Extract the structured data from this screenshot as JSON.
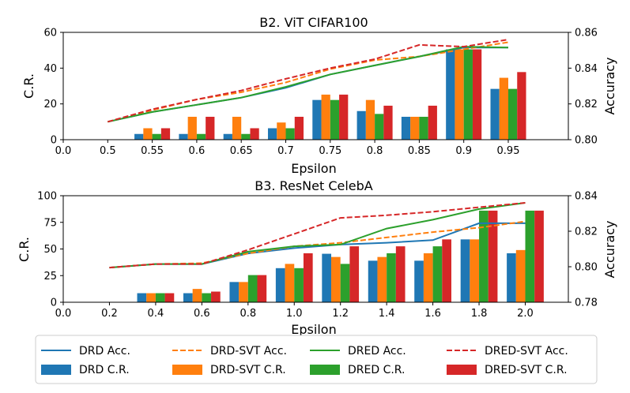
{
  "chart_data": [
    {
      "type": "bar+line",
      "title": "B2. ViT CIFAR100",
      "xlabel": "Epsilon",
      "ylabel_left": "C.R.",
      "ylabel_right": "Accuracy",
      "x_ticks": [
        "0.0",
        "0.5",
        "0.55",
        "0.6",
        "0.65",
        "0.7",
        "0.75",
        "0.8",
        "0.85",
        "0.9",
        "0.95"
      ],
      "left_ylim": [
        0,
        60
      ],
      "left_yticks": [
        "0",
        "20",
        "40",
        "60"
      ],
      "right_ylim": [
        0.8,
        0.86
      ],
      "right_yticks": [
        "0.80",
        "0.82",
        "0.84",
        "0.86"
      ],
      "line_start_index": 1,
      "bar_start_index": 2,
      "bar_series": [
        {
          "name": "DRD C.R.",
          "color": "#1f77b4",
          "values": [
            3.2,
            3.2,
            3.2,
            6.4,
            22.2,
            16.0,
            12.8,
            50.5,
            28.4
          ]
        },
        {
          "name": "DRD-SVT C.R.",
          "color": "#ff7f0e",
          "values": [
            6.4,
            12.8,
            12.8,
            9.6,
            25.2,
            22.2,
            12.8,
            50.5,
            34.6
          ]
        },
        {
          "name": "DRED C.R.",
          "color": "#2ca02c",
          "values": [
            3.2,
            3.2,
            3.2,
            6.4,
            22.2,
            14.4,
            12.8,
            50.5,
            28.4
          ]
        },
        {
          "name": "DRED-SVT C.R.",
          "color": "#d62728",
          "values": [
            6.4,
            12.8,
            6.4,
            12.8,
            25.2,
            19.0,
            19.0,
            50.5,
            37.8
          ]
        }
      ],
      "line_series": [
        {
          "name": "DRD Acc.",
          "color": "#1f77b4",
          "dash": false,
          "values": [
            0.81,
            0.8155,
            0.8195,
            0.8235,
            0.829,
            0.8365,
            0.8415,
            0.8465,
            0.8515,
            0.8515
          ]
        },
        {
          "name": "DRD-SVT Acc.",
          "color": "#ff7f0e",
          "dash": true,
          "values": [
            0.81,
            0.8165,
            0.8225,
            0.8265,
            0.832,
            0.8395,
            0.8445,
            0.8465,
            0.8505,
            0.8545
          ]
        },
        {
          "name": "DRED Acc.",
          "color": "#2ca02c",
          "dash": false,
          "values": [
            0.81,
            0.8155,
            0.8195,
            0.8235,
            0.8295,
            0.8365,
            0.8415,
            0.8465,
            0.852,
            0.8515
          ]
        },
        {
          "name": "DRED-SVT Acc.",
          "color": "#d62728",
          "dash": true,
          "values": [
            0.81,
            0.817,
            0.8225,
            0.8275,
            0.834,
            0.84,
            0.845,
            0.853,
            0.852,
            0.856
          ]
        }
      ]
    },
    {
      "type": "bar+line",
      "title": "B3. ResNet CelebA",
      "xlabel": "Epsilon",
      "ylabel_left": "C.R.",
      "ylabel_right": "Accuracy",
      "x_ticks": [
        "0.0",
        "0.2",
        "0.4",
        "0.6",
        "0.8",
        "1.0",
        "1.2",
        "1.4",
        "1.6",
        "1.8",
        "2.0"
      ],
      "left_ylim": [
        0,
        100
      ],
      "left_yticks": [
        "0",
        "25",
        "50",
        "75",
        "100"
      ],
      "right_ylim": [
        0.78,
        0.84
      ],
      "right_yticks": [
        "0.78",
        "0.80",
        "0.82",
        "0.84"
      ],
      "line_start_index": 1,
      "bar_start_index": 2,
      "bar_series": [
        {
          "name": "DRD C.R.",
          "color": "#1f77b4",
          "values": [
            8.5,
            8.5,
            19,
            32,
            45.5,
            39,
            39,
            59,
            46
          ]
        },
        {
          "name": "DRD-SVT C.R.",
          "color": "#ff7f0e",
          "values": [
            8.5,
            12.5,
            19,
            36,
            42.5,
            42.5,
            46,
            59,
            49
          ]
        },
        {
          "name": "DRED C.R.",
          "color": "#2ca02c",
          "values": [
            8.5,
            8.5,
            25.5,
            32,
            36,
            46,
            52.5,
            86,
            86
          ]
        },
        {
          "name": "DRED-SVT C.R.",
          "color": "#d62728",
          "values": [
            8.5,
            10,
            25.5,
            46,
            52.5,
            52.5,
            59,
            86,
            86
          ]
        }
      ],
      "line_series": [
        {
          "name": "DRD Acc.",
          "color": "#1f77b4",
          "dash": false,
          "values": [
            0.7995,
            0.8015,
            0.8015,
            0.8075,
            0.8105,
            0.8125,
            0.8135,
            0.815,
            0.8245,
            0.8245
          ]
        },
        {
          "name": "DRD-SVT Acc.",
          "color": "#ff7f0e",
          "dash": true,
          "values": [
            0.7995,
            0.8015,
            0.802,
            0.8075,
            0.8115,
            0.8135,
            0.8165,
            0.8195,
            0.822,
            0.8255
          ]
        },
        {
          "name": "DRED Acc.",
          "color": "#2ca02c",
          "dash": false,
          "values": [
            0.7995,
            0.8015,
            0.8015,
            0.8085,
            0.8115,
            0.8125,
            0.8215,
            0.8265,
            0.8325,
            0.836
          ]
        },
        {
          "name": "DRED-SVT Acc.",
          "color": "#d62728",
          "dash": true,
          "values": [
            0.7995,
            0.8015,
            0.8015,
            0.8095,
            0.8185,
            0.8275,
            0.829,
            0.831,
            0.8335,
            0.836
          ]
        }
      ]
    }
  ],
  "legend": {
    "placement": "bottom",
    "columns": 4,
    "items": [
      {
        "label": "DRD Acc.",
        "color": "#1f77b4",
        "kind": "line"
      },
      {
        "label": "DRD-SVT Acc.",
        "color": "#ff7f0e",
        "kind": "dashed"
      },
      {
        "label": "DRED Acc.",
        "color": "#2ca02c",
        "kind": "line"
      },
      {
        "label": "DRED-SVT Acc.",
        "color": "#d62728",
        "kind": "dashed"
      },
      {
        "label": "DRD C.R.",
        "color": "#1f77b4",
        "kind": "bar"
      },
      {
        "label": "DRD-SVT C.R.",
        "color": "#ff7f0e",
        "kind": "bar"
      },
      {
        "label": "DRED C.R.",
        "color": "#2ca02c",
        "kind": "bar"
      },
      {
        "label": "DRED-SVT C.R.",
        "color": "#d62728",
        "kind": "bar"
      }
    ]
  }
}
